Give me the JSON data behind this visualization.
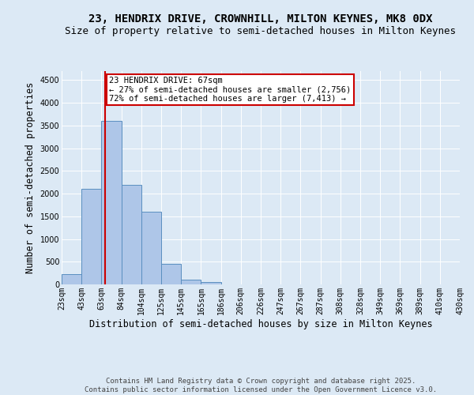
{
  "title_line1": "23, HENDRIX DRIVE, CROWNHILL, MILTON KEYNES, MK8 0DX",
  "title_line2": "Size of property relative to semi-detached houses in Milton Keynes",
  "xlabel": "Distribution of semi-detached houses by size in Milton Keynes",
  "ylabel": "Number of semi-detached properties",
  "annotation_title": "23 HENDRIX DRIVE: 67sqm",
  "annotation_line1": "← 27% of semi-detached houses are smaller (2,756)",
  "annotation_line2": "72% of semi-detached houses are larger (7,413) →",
  "footer": "Contains HM Land Registry data © Crown copyright and database right 2025.\nContains public sector information licensed under the Open Government Licence v3.0.",
  "bins": [
    "23sqm",
    "43sqm",
    "63sqm",
    "84sqm",
    "104sqm",
    "125sqm",
    "145sqm",
    "165sqm",
    "186sqm",
    "206sqm",
    "226sqm",
    "247sqm",
    "267sqm",
    "287sqm",
    "308sqm",
    "328sqm",
    "349sqm",
    "369sqm",
    "389sqm",
    "410sqm",
    "430sqm"
  ],
  "values": [
    230,
    2100,
    3600,
    2200,
    1600,
    450,
    100,
    60,
    0,
    0,
    0,
    0,
    0,
    0,
    0,
    0,
    0,
    0,
    0,
    0
  ],
  "bar_color": "#aec6e8",
  "bar_edge_color": "#5a8fc0",
  "vline_color": "#cc0000",
  "bg_color": "#dce9f5",
  "annotation_box_color": "#ffffff",
  "annotation_box_edge": "#cc0000",
  "ylim": [
    0,
    4700
  ],
  "yticks": [
    0,
    500,
    1000,
    1500,
    2000,
    2500,
    3000,
    3500,
    4000,
    4500
  ],
  "title_fontsize": 10,
  "subtitle_fontsize": 9,
  "axis_label_fontsize": 8.5,
  "tick_fontsize": 7,
  "footer_fontsize": 6.5,
  "annotation_fontsize": 7.5
}
